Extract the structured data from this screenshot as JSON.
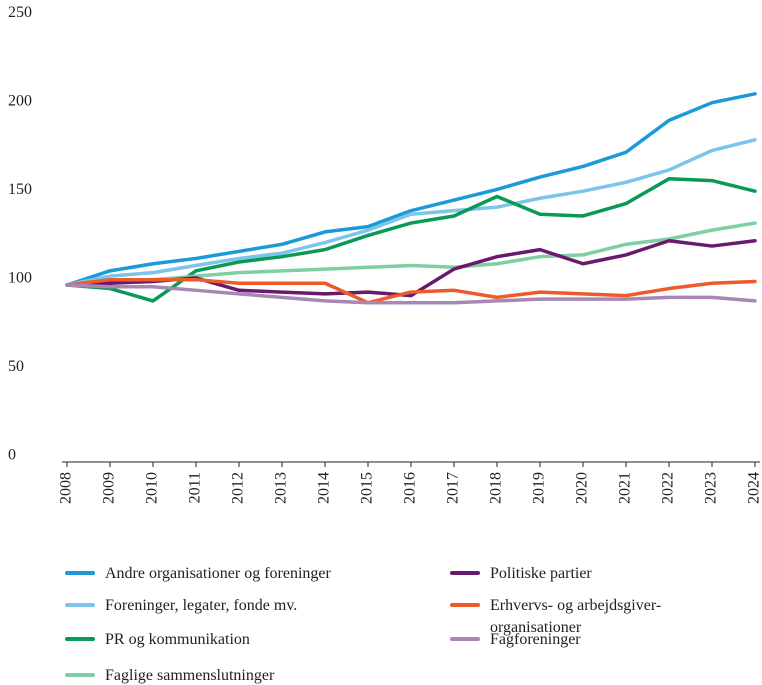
{
  "chart_data": {
    "type": "line",
    "x": [
      2008,
      2009,
      2010,
      2011,
      2012,
      2013,
      2014,
      2015,
      2016,
      2017,
      2018,
      2019,
      2020,
      2021,
      2022,
      2023,
      2024
    ],
    "xlim": [
      2008,
      2024
    ],
    "ylim": [
      0,
      250
    ],
    "yticks": [
      0,
      50,
      100,
      150,
      200,
      250
    ],
    "grid": false,
    "series": [
      {
        "name": "Andre organisationer og foreninger",
        "color": "#1a9ad6",
        "values": [
          100,
          108,
          112,
          115,
          119,
          123,
          130,
          133,
          142,
          148,
          154,
          161,
          167,
          175,
          193,
          203,
          208
        ]
      },
      {
        "name": "Foreninger, legater, fonde mv.",
        "color": "#7cc4ea",
        "values": [
          100,
          105,
          107,
          111,
          115,
          118,
          124,
          131,
          140,
          142,
          144,
          149,
          153,
          158,
          165,
          176,
          182
        ]
      },
      {
        "name": "PR og kommunikation",
        "color": "#0a9a55",
        "values": [
          100,
          98,
          91,
          108,
          113,
          116,
          120,
          128,
          135,
          139,
          150,
          140,
          139,
          146,
          160,
          159,
          153
        ]
      },
      {
        "name": "Faglige sammenslutninger",
        "color": "#7fcfa5",
        "values": [
          100,
          102,
          103,
          105,
          107,
          108,
          109,
          110,
          111,
          110,
          112,
          116,
          117,
          123,
          126,
          131,
          135
        ]
      },
      {
        "name": "Politiske partier",
        "color": "#6a1a6e",
        "values": [
          100,
          101,
          102,
          104,
          97,
          96,
          95,
          96,
          94,
          109,
          116,
          120,
          112,
          117,
          125,
          122,
          125
        ]
      },
      {
        "name": "Erhvervs- og arbejdsgiver-organisationer",
        "color": "#ee5a2a",
        "values": [
          100,
          103,
          103,
          103,
          101,
          101,
          101,
          90,
          96,
          97,
          93,
          96,
          95,
          94,
          98,
          101,
          102
        ]
      },
      {
        "name": "Fagforeninger",
        "color": "#a887b4",
        "values": [
          100,
          99,
          99,
          97,
          95,
          93,
          91,
          90,
          90,
          90,
          91,
          92,
          92,
          92,
          93,
          93,
          91
        ]
      }
    ]
  }
}
